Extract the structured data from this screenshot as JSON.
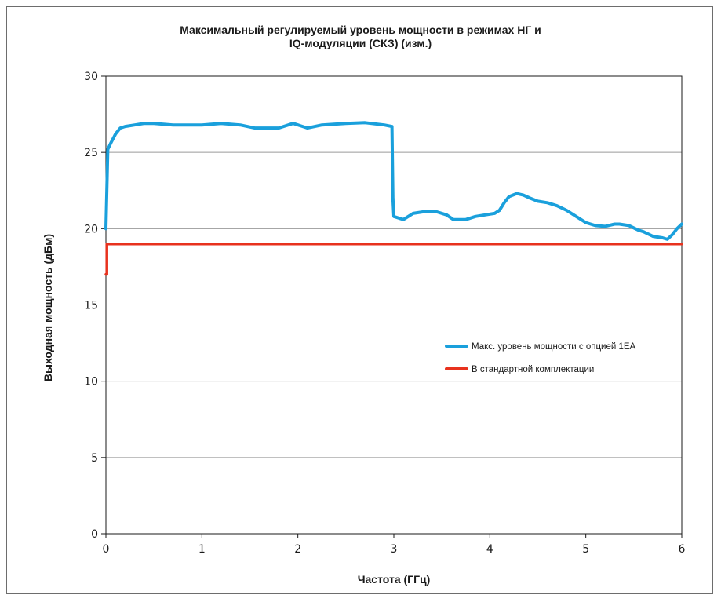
{
  "chart_data": {
    "type": "line",
    "title_line1": "Максимальный регулируемый уровень мощности в режимах НГ и",
    "title_line2": "IQ-модуляции (СКЗ) (изм.)",
    "xlabel": "Частота (ГГц)",
    "ylabel": "Выходная мощность (дБм)",
    "xlim": [
      0,
      6
    ],
    "ylim": [
      0,
      30
    ],
    "xticks": [
      "0",
      "1",
      "2",
      "3",
      "4",
      "5",
      "6"
    ],
    "yticks": [
      "0",
      "5",
      "10",
      "15",
      "20",
      "25",
      "30"
    ],
    "grid": "horizontal",
    "legend_position": "center-right",
    "series": [
      {
        "name": "Макс. уровень мощности с опцией 1EA",
        "color": "#1aa0dc",
        "x": [
          0,
          0.02,
          0.05,
          0.1,
          0.15,
          0.2,
          0.3,
          0.4,
          0.5,
          0.7,
          0.9,
          1.0,
          1.2,
          1.4,
          1.55,
          1.7,
          1.8,
          1.95,
          2.1,
          2.25,
          2.5,
          2.7,
          2.9,
          2.98,
          2.99,
          3.0,
          3.1,
          3.2,
          3.3,
          3.45,
          3.55,
          3.62,
          3.7,
          3.75,
          3.85,
          3.95,
          4.05,
          4.1,
          4.15,
          4.2,
          4.28,
          4.35,
          4.42,
          4.5,
          4.6,
          4.7,
          4.8,
          4.9,
          5.0,
          5.1,
          5.2,
          5.3,
          5.35,
          5.45,
          5.55,
          5.6,
          5.7,
          5.8,
          5.85,
          5.9,
          5.95,
          6.0
        ],
        "y": [
          20.0,
          25.2,
          25.6,
          26.2,
          26.6,
          26.7,
          26.8,
          26.9,
          26.9,
          26.8,
          26.8,
          26.8,
          26.9,
          26.8,
          26.6,
          26.6,
          26.6,
          26.9,
          26.6,
          26.8,
          26.9,
          26.95,
          26.8,
          26.7,
          22.0,
          20.8,
          20.6,
          21.0,
          21.1,
          21.1,
          20.9,
          20.6,
          20.6,
          20.6,
          20.8,
          20.9,
          21.0,
          21.2,
          21.7,
          22.1,
          22.3,
          22.2,
          22.0,
          21.8,
          21.7,
          21.5,
          21.2,
          20.8,
          20.4,
          20.2,
          20.15,
          20.3,
          20.3,
          20.2,
          19.9,
          19.8,
          19.5,
          19.4,
          19.3,
          19.6,
          20.0,
          20.3
        ]
      },
      {
        "name": "В стандартной комплектации",
        "color": "#e8321e",
        "x": [
          0,
          0.01,
          0.01,
          6.0
        ],
        "y": [
          17.0,
          17.0,
          19.0,
          19.0
        ]
      }
    ]
  }
}
